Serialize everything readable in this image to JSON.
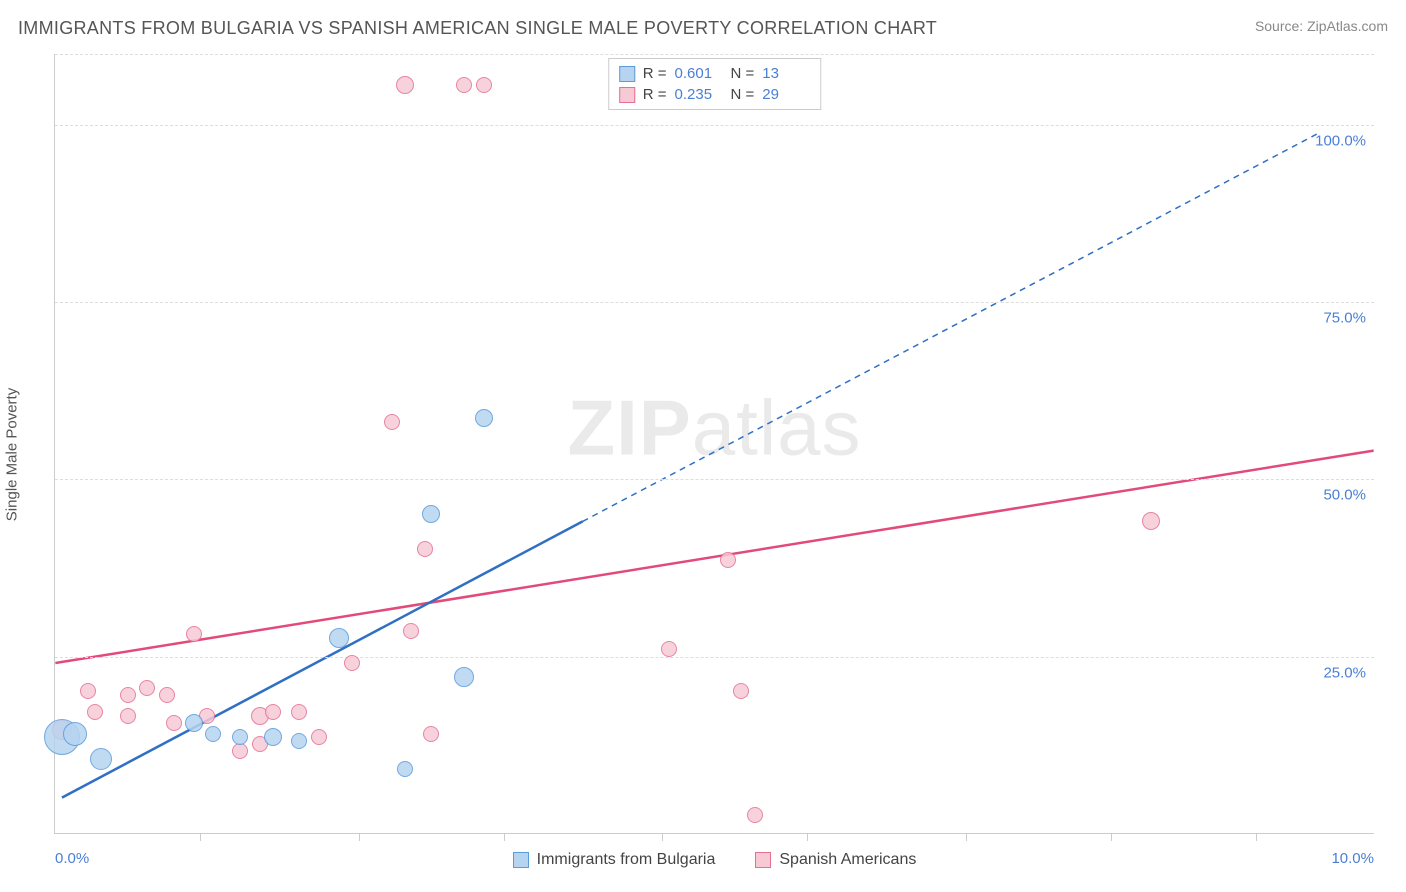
{
  "header": {
    "title": "IMMIGRANTS FROM BULGARIA VS SPANISH AMERICAN SINGLE MALE POVERTY CORRELATION CHART",
    "source_prefix": "Source: ",
    "source_link": "ZipAtlas.com"
  },
  "axes": {
    "ylabel": "Single Male Poverty",
    "xlim": [
      0,
      10
    ],
    "ylim": [
      0,
      110
    ],
    "yticks": [
      {
        "v": 25,
        "label": "25.0%"
      },
      {
        "v": 50,
        "label": "50.0%"
      },
      {
        "v": 75,
        "label": "75.0%"
      },
      {
        "v": 100,
        "label": "100.0%"
      }
    ],
    "xticks": [
      1.1,
      2.3,
      3.4,
      4.6,
      5.7,
      6.9,
      8.0,
      9.1
    ],
    "xlabels": [
      {
        "v": 0,
        "label": "0.0%"
      },
      {
        "v": 10,
        "label": "10.0%"
      }
    ],
    "grid_color": "#dddddd",
    "axis_color": "#cccccc",
    "tick_label_color": "#4a7fd6"
  },
  "series": [
    {
      "id": "bulgaria",
      "name": "Immigrants from Bulgaria",
      "fill": "#b6d4f0",
      "stroke": "#5a9bdc",
      "line_color": "#2f6fc4",
      "r_value": "0.601",
      "n_value": "13",
      "trend": {
        "x1": 0.05,
        "y1": 5.0,
        "x2": 4.0,
        "y2": 44.0,
        "x2_dash": 9.6,
        "y2_dash": 99.0
      },
      "points": [
        {
          "x": 0.05,
          "y": 13.5,
          "r": 18
        },
        {
          "x": 0.15,
          "y": 14.0,
          "r": 12
        },
        {
          "x": 0.35,
          "y": 10.5,
          "r": 11
        },
        {
          "x": 1.05,
          "y": 15.5,
          "r": 9
        },
        {
          "x": 1.2,
          "y": 14.0,
          "r": 8
        },
        {
          "x": 1.4,
          "y": 13.5,
          "r": 8
        },
        {
          "x": 1.65,
          "y": 13.5,
          "r": 9
        },
        {
          "x": 1.85,
          "y": 13.0,
          "r": 8
        },
        {
          "x": 2.15,
          "y": 27.5,
          "r": 10
        },
        {
          "x": 2.65,
          "y": 9.0,
          "r": 8
        },
        {
          "x": 3.1,
          "y": 22.0,
          "r": 10
        },
        {
          "x": 2.85,
          "y": 45.0,
          "r": 9
        },
        {
          "x": 3.25,
          "y": 58.5,
          "r": 9
        }
      ]
    },
    {
      "id": "spanish",
      "name": "Spanish Americans",
      "fill": "#f6c9d5",
      "stroke": "#e57093",
      "line_color": "#e24a7a",
      "r_value": "0.235",
      "n_value": "29",
      "trend": {
        "x1": 0.0,
        "y1": 24.0,
        "x2": 10.0,
        "y2": 54.0
      },
      "points": [
        {
          "x": 0.05,
          "y": 14.5,
          "r": 10
        },
        {
          "x": 0.25,
          "y": 20.0,
          "r": 8
        },
        {
          "x": 0.3,
          "y": 17.0,
          "r": 8
        },
        {
          "x": 0.55,
          "y": 19.5,
          "r": 8
        },
        {
          "x": 0.55,
          "y": 16.5,
          "r": 8
        },
        {
          "x": 0.7,
          "y": 20.5,
          "r": 8
        },
        {
          "x": 0.85,
          "y": 19.5,
          "r": 8
        },
        {
          "x": 0.9,
          "y": 15.5,
          "r": 8
        },
        {
          "x": 1.05,
          "y": 28.0,
          "r": 8
        },
        {
          "x": 1.15,
          "y": 16.5,
          "r": 8
        },
        {
          "x": 1.4,
          "y": 11.5,
          "r": 8
        },
        {
          "x": 1.55,
          "y": 12.5,
          "r": 8
        },
        {
          "x": 1.55,
          "y": 16.5,
          "r": 9
        },
        {
          "x": 1.65,
          "y": 17.0,
          "r": 8
        },
        {
          "x": 1.85,
          "y": 17.0,
          "r": 8
        },
        {
          "x": 2.0,
          "y": 13.5,
          "r": 8
        },
        {
          "x": 2.25,
          "y": 24.0,
          "r": 8
        },
        {
          "x": 2.55,
          "y": 58.0,
          "r": 8
        },
        {
          "x": 2.7,
          "y": 28.5,
          "r": 8
        },
        {
          "x": 2.8,
          "y": 40.0,
          "r": 8
        },
        {
          "x": 2.85,
          "y": 14.0,
          "r": 8
        },
        {
          "x": 2.65,
          "y": 105.5,
          "r": 9
        },
        {
          "x": 3.1,
          "y": 105.5,
          "r": 8
        },
        {
          "x": 3.25,
          "y": 105.5,
          "r": 8
        },
        {
          "x": 4.65,
          "y": 26.0,
          "r": 8
        },
        {
          "x": 5.2,
          "y": 20.0,
          "r": 8
        },
        {
          "x": 5.1,
          "y": 38.5,
          "r": 8
        },
        {
          "x": 5.3,
          "y": 2.5,
          "r": 8
        },
        {
          "x": 8.3,
          "y": 44.0,
          "r": 9
        }
      ]
    }
  ],
  "legend_top": {
    "r_label": "R =",
    "n_label": "N ="
  },
  "watermark": {
    "text_bold": "ZIP",
    "text_rest": "atlas"
  }
}
